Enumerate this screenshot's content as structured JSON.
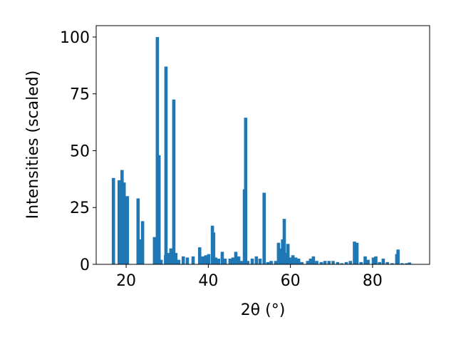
{
  "chart_data": {
    "type": "bar",
    "xlabel": "2θ (°)",
    "ylabel": "Intensities (scaled)",
    "x": [
      16.9,
      18.3,
      19.0,
      19.5,
      20.3,
      22.9,
      23.5,
      24.0,
      26.9,
      27.6,
      28.0,
      28.5,
      29.6,
      29.7,
      30.4,
      30.9,
      31.6,
      32.1,
      32.8,
      33.9,
      34.9,
      36.3,
      37.9,
      38.7,
      39.4,
      40.1,
      41.0,
      41.3,
      41.8,
      42.5,
      43.4,
      44.1,
      45.3,
      46.0,
      46.7,
      47.4,
      48.1,
      48.8,
      49.1,
      49.6,
      50.7,
      51.7,
      52.6,
      53.6,
      54.5,
      55.3,
      56.4,
      57.1,
      57.8,
      58.1,
      58.5,
      58.8,
      59.4,
      59.9,
      60.6,
      61.3,
      62.0,
      62.8,
      64.2,
      64.9,
      65.6,
      66.4,
      67.5,
      68.4,
      69.4,
      70.4,
      71.5,
      72.5,
      73.6,
      74.6,
      75.6,
      76.2,
      77.2,
      78.2,
      78.9,
      80.2,
      80.8,
      81.7,
      82.6,
      83.6,
      84.8,
      85.9,
      86.2,
      87.2,
      88.3,
      89.0
    ],
    "values": [
      38,
      37,
      41.5,
      36,
      30,
      29,
      11,
      19,
      12,
      100,
      48,
      2,
      4,
      87,
      5,
      7,
      72.5,
      5,
      2,
      3.5,
      3,
      3.5,
      7.5,
      3.5,
      4,
      4.5,
      17,
      14,
      3,
      2.5,
      5.5,
      2.5,
      2.5,
      3,
      5.5,
      3.5,
      1.5,
      33,
      64.5,
      1.5,
      2.5,
      3.5,
      2.5,
      31.5,
      1,
      1.5,
      1.5,
      9.5,
      7,
      11,
      20,
      5,
      9,
      3,
      4,
      3,
      2.5,
      1,
      1.5,
      2.5,
      3.5,
      1.5,
      1,
      1.5,
      1.5,
      1.5,
      1,
      0.5,
      1,
      1.5,
      10,
      9.5,
      1,
      3.5,
      2,
      3,
      3.5,
      1,
      2.5,
      1,
      0.5,
      4.5,
      6.5,
      0.5,
      0.5,
      0.8
    ],
    "bar_width": 0.8,
    "color": "#1f77b4",
    "xlim": [
      12.7,
      93.9
    ],
    "xticks": [
      20,
      40,
      60,
      80
    ],
    "ylim": [
      0,
      105
    ],
    "yticks": [
      0,
      25,
      50,
      75,
      100
    ],
    "grid": false
  }
}
